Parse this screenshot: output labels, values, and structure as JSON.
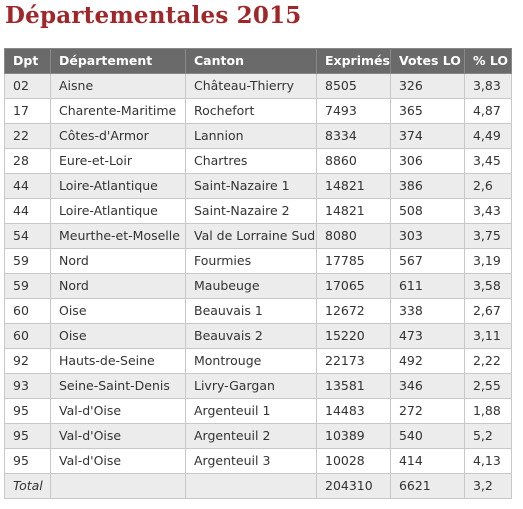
{
  "title": "Départementales 2015",
  "table": {
    "headers": [
      "Dpt",
      "Département",
      "Canton",
      "Exprimés",
      "Votes LO",
      "% LO"
    ],
    "rows": [
      [
        "02",
        "Aisne",
        "Château-Thierry",
        "8505",
        "326",
        "3,83"
      ],
      [
        "17",
        "Charente-Maritime",
        "Rochefort",
        "7493",
        "365",
        "4,87"
      ],
      [
        "22",
        "Côtes-d'Armor",
        "Lannion",
        "8334",
        "374",
        "4,49"
      ],
      [
        "28",
        "Eure-et-Loir",
        "Chartres",
        "8860",
        "306",
        "3,45"
      ],
      [
        "44",
        "Loire-Atlantique",
        "Saint-Nazaire 1",
        "14821",
        "386",
        "2,6"
      ],
      [
        "44",
        "Loire-Atlantique",
        "Saint-Nazaire 2",
        "14821",
        "508",
        "3,43"
      ],
      [
        "54",
        "Meurthe-et-Moselle",
        "Val de Lorraine Sud",
        "8080",
        "303",
        "3,75"
      ],
      [
        "59",
        "Nord",
        "Fourmies",
        "17785",
        "567",
        "3,19"
      ],
      [
        "59",
        "Nord",
        "Maubeuge",
        "17065",
        "611",
        "3,58"
      ],
      [
        "60",
        "Oise",
        "Beauvais 1",
        "12672",
        "338",
        "2,67"
      ],
      [
        "60",
        "Oise",
        "Beauvais 2",
        "15220",
        "473",
        "3,11"
      ],
      [
        "92",
        "Hauts-de-Seine",
        "Montrouge",
        "22173",
        "492",
        "2,22"
      ],
      [
        "93",
        "Seine-Saint-Denis",
        "Livry-Gargan",
        "13581",
        "346",
        "2,55"
      ],
      [
        "95",
        "Val-d'Oise",
        "Argenteuil 1",
        "14483",
        "272",
        "1,88"
      ],
      [
        "95",
        "Val-d'Oise",
        "Argenteuil 2",
        "10389",
        "540",
        "5,2"
      ],
      [
        "95",
        "Val-d'Oise",
        "Argenteuil 3",
        "10028",
        "414",
        "4,13"
      ]
    ],
    "total": [
      "Total",
      "",
      "",
      "204310",
      "6621",
      "3,2"
    ]
  }
}
